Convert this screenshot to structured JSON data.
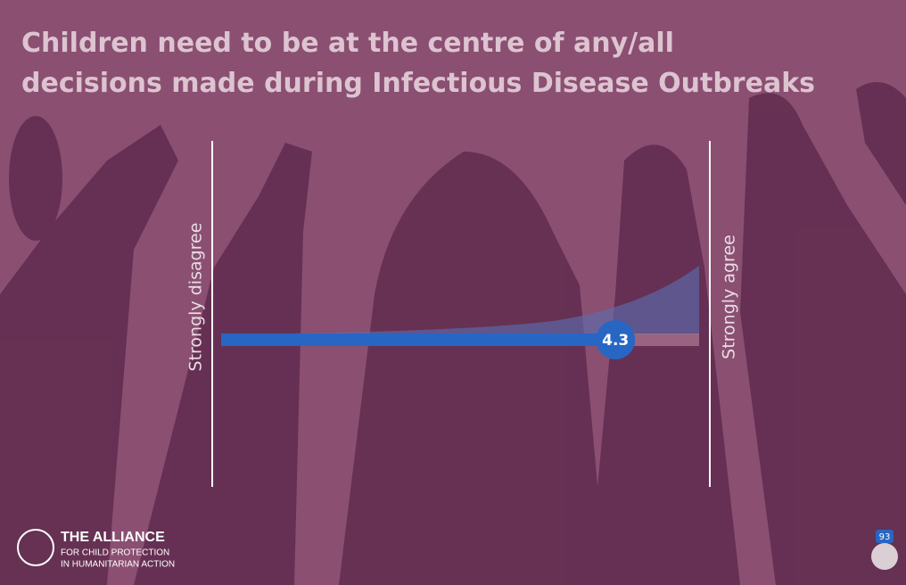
{
  "chart_data": {
    "type": "scale",
    "title": "Children need to be at the centre of any/all decisions made during Infectious Disease Outbreaks",
    "min_label": "Strongly disagree",
    "max_label": "Strongly agree",
    "xlim": [
      1,
      5
    ],
    "values": [
      4.3
    ],
    "color": "#2866c4"
  },
  "logo": {
    "name": "THE ALLIANCE",
    "line1": "FOR CHILD PROTECTION",
    "line2": "IN HUMANITARIAN ACTION"
  },
  "participants": 93
}
